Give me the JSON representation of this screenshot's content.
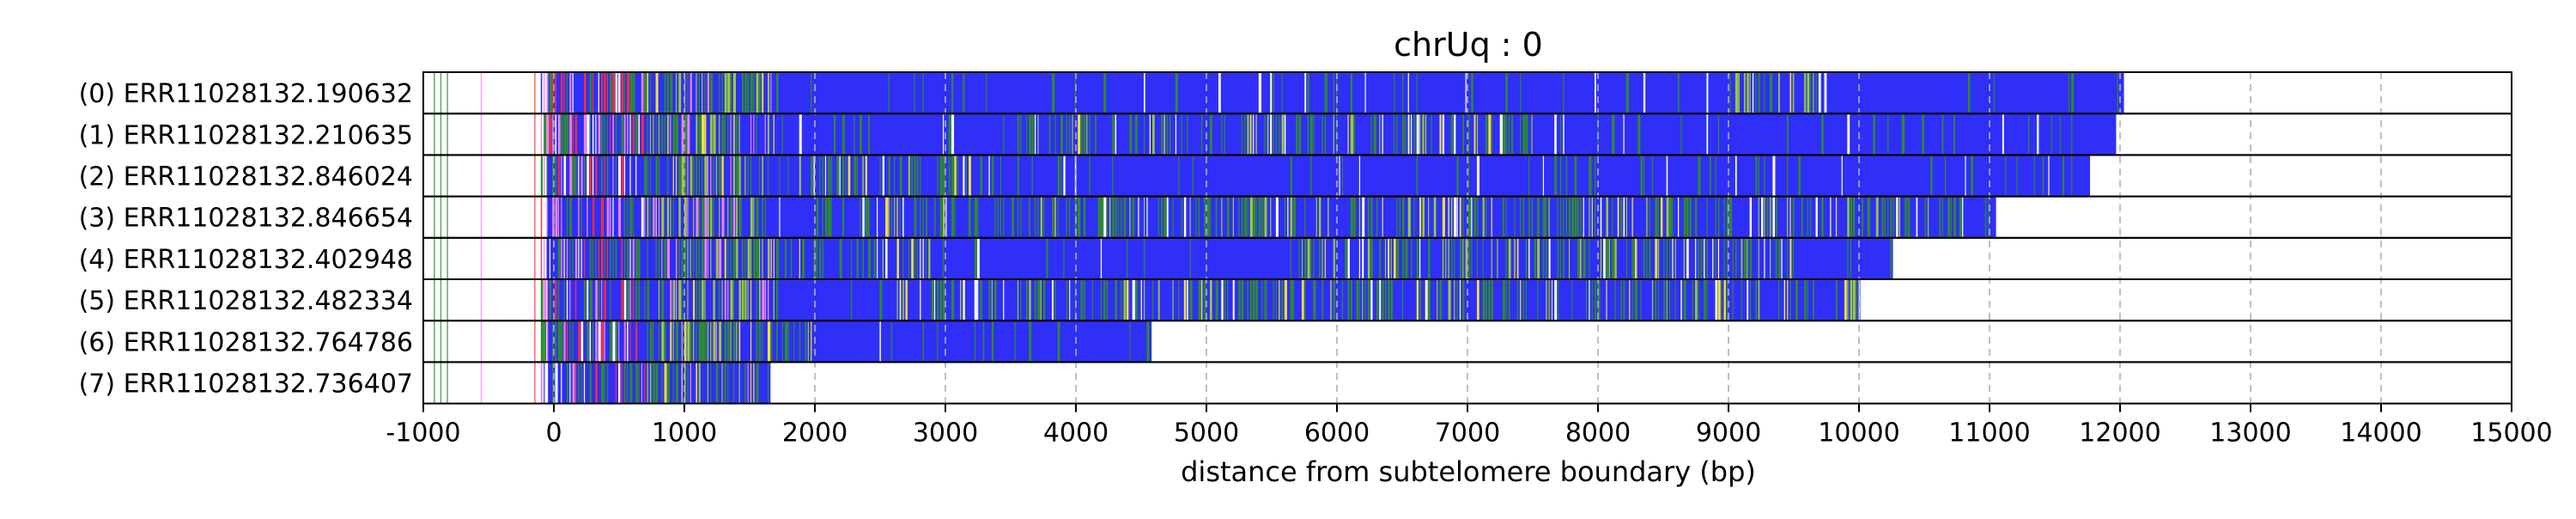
{
  "chart_data": {
    "type": "bar",
    "orientation": "horizontal",
    "title": "chrUq : 0",
    "xlabel": "distance from subtelomere boundary (bp)",
    "ylabel": "",
    "xlim": [
      -1000,
      15000
    ],
    "xticks": [
      -1000,
      0,
      1000,
      2000,
      3000,
      4000,
      5000,
      6000,
      7000,
      8000,
      9000,
      10000,
      11000,
      12000,
      13000,
      14000,
      15000
    ],
    "grid": "x, dashed",
    "reads": [
      {
        "label": "(0) ERR11028132.190632",
        "start": -1000,
        "end": 12030
      },
      {
        "label": "(1) ERR11028132.210635",
        "start": -1000,
        "end": 11970
      },
      {
        "label": "(2) ERR11028132.846024",
        "start": -1000,
        "end": 11770
      },
      {
        "label": "(3) ERR11028132.846654",
        "start": -1000,
        "end": 11050
      },
      {
        "label": "(4) ERR11028132.402948",
        "start": -1000,
        "end": 10260
      },
      {
        "label": "(5) ERR11028132.482334",
        "start": -1000,
        "end": 10010
      },
      {
        "label": "(6) ERR11028132.764786",
        "start": -1000,
        "end": 4580
      },
      {
        "label": "(7) ERR11028132.736407",
        "start": -1000,
        "end": 1660
      }
    ],
    "colors": {
      "main": "#2f2ff8",
      "green": "#2e8b2e",
      "yellowgreen": "#9acd32",
      "yellow": "#f0e040",
      "red": "#ff3030",
      "magenta": "#ee82ee",
      "white": "#ffffff",
      "grid": "#b0b0b0"
    }
  }
}
